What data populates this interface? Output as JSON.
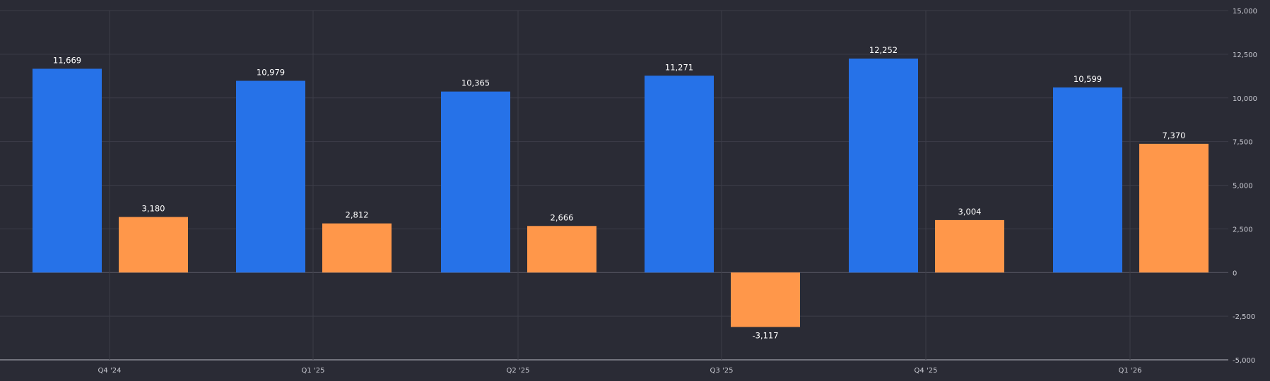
{
  "chart_data": {
    "type": "bar",
    "categories": [
      "Q4 '24",
      "Q1 '25",
      "Q2 '25",
      "Q3 '25",
      "Q4 '25",
      "Q1 '26"
    ],
    "series": [
      {
        "values": [
          11669,
          10979,
          10365,
          11271,
          12252,
          10599
        ],
        "labels": [
          "11,669",
          "10,979",
          "10,365",
          "11,271",
          "12,252",
          "10,599"
        ],
        "color": "#2672e8"
      },
      {
        "values": [
          3180,
          2812,
          2666,
          -3117,
          3004,
          7370
        ],
        "labels": [
          "3,180",
          "2,812",
          "2,666",
          "-3,117",
          "3,004",
          "7,370"
        ],
        "color": "#ff974a"
      }
    ],
    "y_ticks": [
      15000,
      12500,
      10000,
      7500,
      5000,
      2500,
      0,
      -2500,
      -5000
    ],
    "y_tick_labels": [
      "15,000",
      "12,500",
      "10,000",
      "7,500",
      "5,000",
      "2,500",
      "0",
      "-2,500",
      "-5,000"
    ],
    "ylim": [
      -5000,
      15000
    ],
    "y_axis_position": "right",
    "grid": true,
    "background": "#2a2b35",
    "gridline_color": "#3c3d48"
  }
}
